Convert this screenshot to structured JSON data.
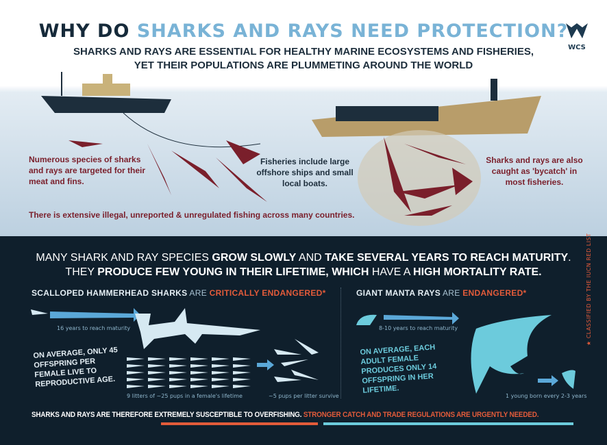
{
  "header": {
    "title_part1": "WHY DO ",
    "title_part2": "SHARKS AND RAYS NEED PROTECTION?",
    "subtitle_line1_a": "SHARKS AND RAYS ARE ",
    "subtitle_line1_b": "ESSENTIAL FOR HEALTHY MARINE ECOSYSTEMS",
    "subtitle_line1_c": " AND FISHERIES,",
    "subtitle_line2_a": "YET THEIR ",
    "subtitle_line2_b": "POPULATIONS ARE PLUMMETING",
    "subtitle_line2_c": " AROUND THE WORLD"
  },
  "logo": {
    "text": "WCS"
  },
  "fisheries": {
    "targeted": "Numerous species of sharks and rays are targeted for their meat and fins.",
    "boats": "Fisheries include large offshore ships and small local boats.",
    "bycatch": "Sharks and rays are also caught as 'bycatch' in most fisheries.",
    "illegal": "There is extensive illegal, unreported & unregulated fishing across many countries."
  },
  "growth": {
    "line1_a": "MANY SHARK AND RAY SPECIES ",
    "line1_b": "GROW SLOWLY",
    "line1_c": " AND ",
    "line1_d": "TAKE SEVERAL YEARS TO REACH MATURITY",
    "line2_a": "THEY ",
    "line2_b": "PRODUCE FEW YOUNG IN THEIR LIFETIME, WHICH",
    "line2_c": " HAVE A ",
    "line2_d": "HIGH MORTALITY RATE."
  },
  "hammerhead": {
    "name": "SCALLOPED HAMMERHEAD SHARKS",
    "are": " ARE ",
    "status": "CRITICALLY ENDANGERED*",
    "maturity": "16 years to reach maturity",
    "offspring": "ON AVERAGE, ONLY 45 OFFSPRING PER FEMALE LIVE TO REPRODUCTIVE AGE.",
    "litters": "9 litters of ~25 pups in a female's lifetime",
    "survive": "~5 pups per litter survive"
  },
  "manta": {
    "name": "GIANT MANTA RAYS",
    "are": " ARE ",
    "status": "ENDANGERED*",
    "maturity": "8-10 years to reach maturity",
    "offspring": "ON AVERAGE, EACH ADULT FEMALE PRODUCES ONLY 14 OFFSPRING IN HER LIFETIME.",
    "young": "1 young born every 2-3 years"
  },
  "side_note": "★ CLASSIFIED BY THE IUCN RED LIST",
  "footer": {
    "a": "SHARKS AND RAYS ARE THEREFORE ",
    "b": "EXTREMELY SUSCEPTIBLE TO OVERFISHING.",
    "c": " STRONGER CATCH AND TRADE REGULATIONS ARE URGENTLY NEEDED."
  },
  "colors": {
    "navy": "#0f1f2c",
    "red": "#e35b3a",
    "teal": "#6ccbdc",
    "maroon": "#7a1f2b",
    "light_blue": "#79b3d6"
  }
}
